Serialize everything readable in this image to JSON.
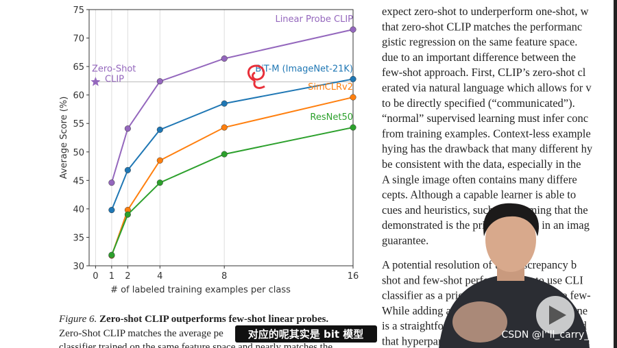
{
  "chart_data": {
    "type": "line",
    "x": [
      1,
      2,
      4,
      8,
      16
    ],
    "xlim": [
      -0.4,
      16
    ],
    "xticks": [
      0,
      1,
      2,
      4,
      8,
      16
    ],
    "ylim": [
      30,
      75
    ],
    "yticks": [
      30,
      35,
      40,
      45,
      50,
      55,
      60,
      65,
      70,
      75
    ],
    "grid": "x",
    "xlabel": "# of labeled training examples per class",
    "ylabel": "Average Score (%)",
    "series": [
      {
        "name": "Linear Probe CLIP",
        "color": "#9467bd",
        "values": [
          44.6,
          54.1,
          62.4,
          66.4,
          71.5
        ]
      },
      {
        "name": "BiT-M (ImageNet-21K)",
        "color": "#1f77b4",
        "values": [
          39.8,
          46.8,
          53.9,
          58.5,
          62.8
        ]
      },
      {
        "name": "SimCLRv2",
        "color": "#ff7f0e",
        "values": [
          31.8,
          39.8,
          48.5,
          54.3,
          59.6
        ]
      },
      {
        "name": "ResNet50",
        "color": "#2ca02c",
        "values": [
          31.9,
          39.0,
          44.6,
          49.6,
          54.3
        ]
      }
    ],
    "marker": {
      "label": [
        "Zero-Shot",
        "CLIP"
      ],
      "x": 0,
      "y": 62.3,
      "color": "#9467bd"
    }
  },
  "caption": {
    "label": "Figure 6.",
    "title": "Zero-shot CLIP outperforms few-shot linear probes.",
    "lines": [
      "Zero-Shot CLIP matches the average pe",
      "classifier trained on the same feature space and nearly matches the"
    ]
  },
  "document": {
    "paragraphs": [
      [
        "expect zero-shot to underperform one-shot, w",
        "that zero-shot CLIP matches the performanc",
        "gistic regression on the same feature space.",
        "due to an important difference between the",
        "few-shot approach. First, CLIP’s zero-shot cl",
        "erated via natural language which allows for v",
        "to be directly specified (“communicated”).",
        "“normal” supervised learning must infer conc",
        "from training examples. Context-less example",
        "hying has the drawback that many different hy",
        "be consistent with the data, especially in the",
        "A single image often contains many differe",
        "cepts. Although a capable learner is able to",
        "cues and heuristics, such as assuming that the",
        "demonstrated is the primary object in an imag",
        "guarantee."
      ],
      [
        "A potential resolution of this discrepancy b",
        "shot and few-shot performance is to use CLI",
        "classifier as a prior for the weights of the few-",
        "While adding an L2 penalty towards the gene",
        "is a straightforward implementation of this id",
        "that hyperparameter optimization would often"
      ]
    ]
  },
  "subtitle": "对应的呢其实是 bit 模型",
  "watermark": "CSDN @I''ll_carry_you"
}
